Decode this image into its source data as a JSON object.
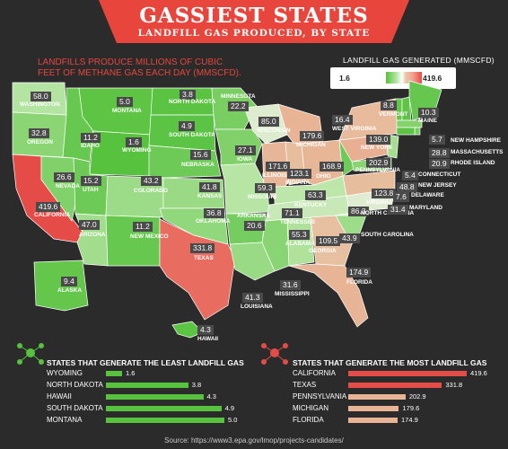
{
  "header": {
    "title": "GASSIEST STATES",
    "subtitle": "LANDFILL GAS PRODUCED, BY STATE",
    "intro": "LANDFILLS PRODUCE MILLIONS OF CUBIC FEET OF METHANE GAS EACH DAY (MMSCFD)."
  },
  "legend": {
    "title": "LANDFILL GAS GENERATED (MMSCFD)",
    "min": "1.6",
    "max": "419.6"
  },
  "colors": {
    "banner": "#e8453c",
    "background": "#2b2b2b",
    "low_scale": "#57c23e",
    "high_scale": "#e54b47",
    "label_box": "#4a4a4a",
    "least_bar": "#57c23e",
    "most_bar_top": "#e54b47",
    "most_bar_other": "#e7b596"
  },
  "chart_data": [
    {
      "type": "choropleth",
      "unit": "MMSCFD",
      "value_range": [
        1.6,
        419.6
      ],
      "states": [
        {
          "name": "WASHINGTON",
          "value": 58.0
        },
        {
          "name": "OREGON",
          "value": 32.8
        },
        {
          "name": "CALIFORNIA",
          "value": 419.6
        },
        {
          "name": "NEVADA",
          "value": 26.6
        },
        {
          "name": "IDAHO",
          "value": 11.2
        },
        {
          "name": "MONTANA",
          "value": 5.0
        },
        {
          "name": "WYOMING",
          "value": 1.6
        },
        {
          "name": "UTAH",
          "value": 15.2
        },
        {
          "name": "ARIZONA",
          "value": 47.0
        },
        {
          "name": "COLORADO",
          "value": 43.2
        },
        {
          "name": "NEW MEXICO",
          "value": 11.2
        },
        {
          "name": "NORTH DAKOTA",
          "value": 3.8
        },
        {
          "name": "SOUTH DAKOTA",
          "value": 4.9
        },
        {
          "name": "NEBRASKA",
          "value": 15.6
        },
        {
          "name": "KANSAS",
          "value": 41.8
        },
        {
          "name": "OKLAHOMA",
          "value": 36.8
        },
        {
          "name": "TEXAS",
          "value": 331.8
        },
        {
          "name": "MINNESOTA",
          "value": 22.2
        },
        {
          "name": "IOWA",
          "value": 27.1
        },
        {
          "name": "MISSOURI",
          "value": 59.3
        },
        {
          "name": "ARKANSAS",
          "value": 20.6
        },
        {
          "name": "LOUISIANA",
          "value": 41.3
        },
        {
          "name": "WISCONSIN",
          "value": 85.0
        },
        {
          "name": "ILLINOIS",
          "value": 171.6
        },
        {
          "name": "MICHIGAN",
          "value": 179.6
        },
        {
          "name": "INDIANA",
          "value": 123.1
        },
        {
          "name": "OHIO",
          "value": 168.9
        },
        {
          "name": "KENTUCKY",
          "value": 63.3
        },
        {
          "name": "TENNESSEE",
          "value": 71.1
        },
        {
          "name": "MISSISSIPPI",
          "value": 31.6
        },
        {
          "name": "ALABAMA",
          "value": 55.3
        },
        {
          "name": "GEORGIA",
          "value": 109.5
        },
        {
          "name": "FLORIDA",
          "value": 174.9
        },
        {
          "name": "SOUTH CAROLINA",
          "value": 43.9
        },
        {
          "name": "NORTH CAROLINA",
          "value": 86.3
        },
        {
          "name": "VIRGINIA",
          "value": 123.8
        },
        {
          "name": "WEST VIRGINIA",
          "value": 16.4
        },
        {
          "name": "PENNSYLVANIA",
          "value": 202.9
        },
        {
          "name": "NEW YORK",
          "value": 139.0
        },
        {
          "name": "VERMONT",
          "value": 8.8
        },
        {
          "name": "MAINE",
          "value": 10.3
        },
        {
          "name": "NEW HAMPSHIRE",
          "value": 5.7
        },
        {
          "name": "MASSACHUSETTS",
          "value": 28.8
        },
        {
          "name": "RHODE ISLAND",
          "value": 20.9
        },
        {
          "name": "CONNECTICUT",
          "value": 5.4
        },
        {
          "name": "NEW JERSEY",
          "value": 48.8
        },
        {
          "name": "DELAWARE",
          "value": 7.6
        },
        {
          "name": "MARYLAND",
          "value": 31.4
        },
        {
          "name": "ALASKA",
          "value": 9.4
        },
        {
          "name": "HAWAII",
          "value": 4.3
        }
      ]
    },
    {
      "type": "bar",
      "title": "STATES THAT GENERATE THE LEAST LANDFILL GAS",
      "categories": [
        "WYOMING",
        "NORTH DAKOTA",
        "HAWAII",
        "SOUTH DAKOTA",
        "MONTANA"
      ],
      "values": [
        1.6,
        3.8,
        4.3,
        4.9,
        5.0
      ],
      "orientation": "horizontal"
    },
    {
      "type": "bar",
      "title": "STATES THAT GENERATE THE MOST LANDFILL GAS",
      "categories": [
        "CALIFORNIA",
        "TEXAS",
        "PENNSYLVANIA",
        "MICHIGAN",
        "FLORIDA"
      ],
      "values": [
        419.6,
        331.8,
        202.9,
        179.6,
        174.9
      ],
      "orientation": "horizontal"
    }
  ],
  "source": "Source: https://www3.epa.gov/lmop/projects-candidates/"
}
